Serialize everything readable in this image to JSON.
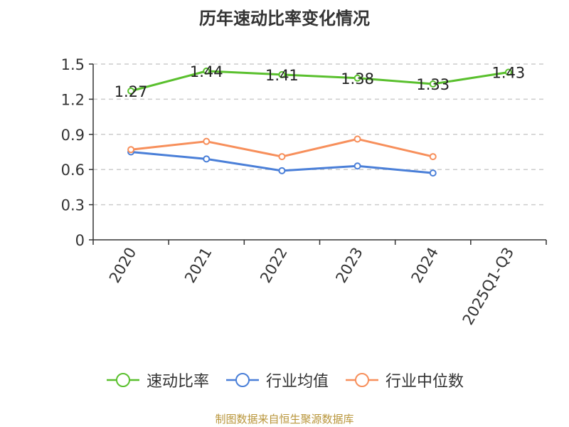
{
  "chart_data": {
    "type": "line",
    "title": "历年速动比率变化情况",
    "categories": [
      "2020",
      "2021",
      "2022",
      "2023",
      "2024",
      "2025Q1-Q3"
    ],
    "yticks": [
      "0",
      "0.3",
      "0.6",
      "0.9",
      "1.2",
      "1.5"
    ],
    "ylim": [
      0,
      1.5
    ],
    "grid": true,
    "legend_position": "bottom",
    "series": [
      {
        "name": "速动比率",
        "color": "#5ac02e",
        "values": [
          1.27,
          1.44,
          1.41,
          1.38,
          1.33,
          1.43
        ],
        "labels": [
          "1.27",
          "1.44",
          "1.41",
          "1.38",
          "1.33",
          "1.43"
        ]
      },
      {
        "name": "行业均值",
        "color": "#4a7fd8",
        "values": [
          0.75,
          0.69,
          0.59,
          0.63,
          0.57,
          null
        ]
      },
      {
        "name": "行业中位数",
        "color": "#f78f5b",
        "values": [
          0.77,
          0.84,
          0.71,
          0.86,
          0.71,
          null
        ]
      }
    ]
  },
  "source": "制图数据来自恒生聚源数据库"
}
